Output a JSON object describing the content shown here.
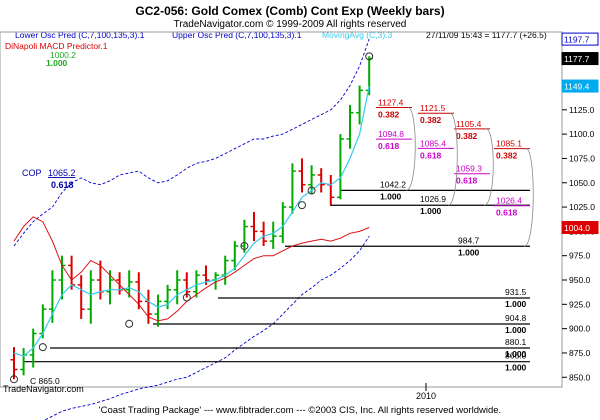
{
  "header": {
    "title": "GC2-056:  Gold Comex (Comb) Cont Exp  (Weekly bars)",
    "copyright": "TradeNavigator.com © 1999-2009 All rights reserved",
    "last_bar": "27/11/09 15:43 = 1177.7 (+26.5)"
  },
  "indicators": {
    "lower_osc": "Lower Osc Pred (C,7,100,135,3).1",
    "upper_osc": "Upper Osc Pred (C,7,100,135,3).1",
    "moving_avg": "MovingAvg (C,3).3",
    "macd": "DiNapoli MACD Predictor.1",
    "top_pred_value": "1000.2",
    "top_pred_ratio": "1.000"
  },
  "watermark": "TradeNavigator.com",
  "footer": "'Coast Trading Package' --- www.fibtrader.com --- ©2003 CIS, Inc. All rights reserved worldwide.",
  "colors": {
    "bar_up": "#00aa00",
    "bar_down": "#dd0000",
    "moving_avg": "#33ccee",
    "macd": "#dd1111",
    "osc_band": "#0000cc",
    "level_line": "#000000",
    "fib_red": "#cc0000",
    "fib_magenta": "#cc00cc",
    "price_last": "#000000",
    "price_upper": "#0000cc",
    "price_ma": "#00aaee",
    "price_macd": "#dd0000"
  },
  "chart_data": {
    "type": "bar",
    "title": "GC2-056:  Gold Comex (Comb) Cont Exp  (Weekly bars)",
    "ylim": [
      840,
      1205
    ],
    "x_tick_label": "2010",
    "y_ticks": [
      850,
      875,
      900,
      925,
      950,
      975,
      1000,
      1025,
      1050,
      1075,
      1100,
      1125,
      1150,
      1175
    ],
    "price_labels": [
      {
        "key": "upper",
        "text": "1197.7",
        "value": 1197.7
      },
      {
        "key": "last",
        "text": "1177.7",
        "value": 1177.7
      },
      {
        "key": "ma",
        "text": "1149.4",
        "value": 1149.4
      },
      {
        "key": "macd",
        "text": "1004.0",
        "value": 1004.0
      }
    ],
    "bars": [
      {
        "o": 868,
        "h": 881,
        "l": 848,
        "c": 858,
        "dir": "down"
      },
      {
        "o": 858,
        "h": 880,
        "l": 852,
        "c": 873,
        "dir": "up"
      },
      {
        "o": 873,
        "h": 900,
        "l": 860,
        "c": 895,
        "dir": "up"
      },
      {
        "o": 895,
        "h": 925,
        "l": 890,
        "c": 920,
        "dir": "up"
      },
      {
        "o": 920,
        "h": 960,
        "l": 906,
        "c": 950,
        "dir": "up"
      },
      {
        "o": 950,
        "h": 975,
        "l": 930,
        "c": 965,
        "dir": "up"
      },
      {
        "o": 965,
        "h": 975,
        "l": 940,
        "c": 945,
        "dir": "down"
      },
      {
        "o": 945,
        "h": 955,
        "l": 910,
        "c": 920,
        "dir": "down"
      },
      {
        "o": 920,
        "h": 960,
        "l": 905,
        "c": 950,
        "dir": "up"
      },
      {
        "o": 950,
        "h": 970,
        "l": 930,
        "c": 938,
        "dir": "down"
      },
      {
        "o": 938,
        "h": 960,
        "l": 925,
        "c": 950,
        "dir": "up"
      },
      {
        "o": 950,
        "h": 958,
        "l": 935,
        "c": 940,
        "dir": "down"
      },
      {
        "o": 940,
        "h": 960,
        "l": 932,
        "c": 948,
        "dir": "up"
      },
      {
        "o": 948,
        "h": 958,
        "l": 920,
        "c": 928,
        "dir": "down"
      },
      {
        "o": 928,
        "h": 940,
        "l": 905,
        "c": 915,
        "dir": "down"
      },
      {
        "o": 915,
        "h": 935,
        "l": 902,
        "c": 928,
        "dir": "up"
      },
      {
        "o": 928,
        "h": 945,
        "l": 920,
        "c": 940,
        "dir": "up"
      },
      {
        "o": 940,
        "h": 960,
        "l": 925,
        "c": 950,
        "dir": "up"
      },
      {
        "o": 950,
        "h": 958,
        "l": 932,
        "c": 938,
        "dir": "down"
      },
      {
        "o": 938,
        "h": 960,
        "l": 932,
        "c": 955,
        "dir": "up"
      },
      {
        "o": 955,
        "h": 965,
        "l": 945,
        "c": 950,
        "dir": "down"
      },
      {
        "o": 950,
        "h": 958,
        "l": 940,
        "c": 955,
        "dir": "up"
      },
      {
        "o": 955,
        "h": 975,
        "l": 945,
        "c": 970,
        "dir": "up"
      },
      {
        "o": 970,
        "h": 990,
        "l": 960,
        "c": 985,
        "dir": "up"
      },
      {
        "o": 985,
        "h": 1012,
        "l": 978,
        "c": 1005,
        "dir": "up"
      },
      {
        "o": 1005,
        "h": 1020,
        "l": 990,
        "c": 1000,
        "dir": "down"
      },
      {
        "o": 1000,
        "h": 1010,
        "l": 985,
        "c": 990,
        "dir": "down"
      },
      {
        "o": 990,
        "h": 1010,
        "l": 982,
        "c": 995,
        "dir": "up"
      },
      {
        "o": 995,
        "h": 1030,
        "l": 988,
        "c": 1025,
        "dir": "up"
      },
      {
        "o": 1025,
        "h": 1070,
        "l": 1018,
        "c": 1062,
        "dir": "up"
      },
      {
        "o": 1062,
        "h": 1075,
        "l": 1040,
        "c": 1048,
        "dir": "down"
      },
      {
        "o": 1048,
        "h": 1068,
        "l": 1038,
        "c": 1058,
        "dir": "up"
      },
      {
        "o": 1058,
        "h": 1065,
        "l": 1040,
        "c": 1048,
        "dir": "down"
      },
      {
        "o": 1048,
        "h": 1058,
        "l": 1027,
        "c": 1035,
        "dir": "down"
      },
      {
        "o": 1035,
        "h": 1100,
        "l": 1033,
        "c": 1095,
        "dir": "up"
      },
      {
        "o": 1095,
        "h": 1130,
        "l": 1085,
        "c": 1122,
        "dir": "up"
      },
      {
        "o": 1122,
        "h": 1150,
        "l": 1110,
        "c": 1145,
        "dir": "up"
      },
      {
        "o": 1145,
        "h": 1180,
        "l": 1140,
        "c": 1177.7,
        "dir": "up"
      }
    ],
    "moving_avg": [
      875,
      872,
      880,
      895,
      915,
      935,
      945,
      940,
      935,
      938,
      940,
      940,
      942,
      938,
      928,
      922,
      925,
      935,
      940,
      945,
      948,
      950,
      955,
      962,
      975,
      988,
      995,
      998,
      1005,
      1020,
      1035,
      1042,
      1050,
      1048,
      1055,
      1075,
      1100,
      1149.4
    ],
    "macd_line": [
      990,
      1005,
      1015,
      1010,
      990,
      965,
      950,
      958,
      970,
      965,
      955,
      945,
      935,
      925,
      912,
      908,
      910,
      918,
      928,
      935,
      942,
      948,
      952,
      958,
      965,
      972,
      975,
      975,
      980,
      985,
      988,
      990,
      992,
      990,
      993,
      998,
      1000,
      1004
    ],
    "upper_band": [
      985,
      998,
      1010,
      1018,
      1025,
      1040,
      1050,
      1055,
      1050,
      1048,
      1052,
      1058,
      1060,
      1062,
      1055,
      1050,
      1052,
      1058,
      1065,
      1070,
      1072,
      1075,
      1080,
      1085,
      1090,
      1095,
      1095,
      1098,
      1100,
      1105,
      1110,
      1115,
      1120,
      1125,
      1135,
      1150,
      1170,
      1197.7
    ],
    "lower_band": [
      790,
      795,
      800,
      805,
      810,
      815,
      818,
      820,
      822,
      825,
      828,
      832,
      835,
      838,
      840,
      842,
      845,
      848,
      850,
      855,
      860,
      865,
      870,
      878,
      885,
      892,
      898,
      905,
      915,
      925,
      935,
      942,
      950,
      955,
      962,
      970,
      980,
      995
    ],
    "pivots": [
      {
        "bar": 0,
        "price": 848
      },
      {
        "bar": 3,
        "price": 881
      },
      {
        "bar": 12,
        "price": 905
      },
      {
        "bar": 18,
        "price": 932
      },
      {
        "bar": 24,
        "price": 985
      },
      {
        "bar": 30,
        "price": 1027
      },
      {
        "bar": 31,
        "price": 1042
      },
      {
        "bar": 37,
        "price": 1180
      }
    ],
    "levels": [
      {
        "value": 1042.2,
        "label": "1042.2",
        "ratio": "1.000"
      },
      {
        "value": 1026.9,
        "label": "1026.9",
        "ratio": "1.000"
      },
      {
        "value": 984.7,
        "label": "984.7",
        "ratio": "1.000"
      },
      {
        "value": 931.5,
        "label": "931.5",
        "ratio": "1.000"
      },
      {
        "value": 904.8,
        "label": "904.8",
        "ratio": "1.000"
      },
      {
        "value": 880.1,
        "label": "880.1",
        "ratio": "1.000"
      },
      {
        "value": 866.0,
        "label": "866.0",
        "ratio": "1.000"
      }
    ],
    "fib_red": [
      {
        "value": 1127.4,
        "label": "1127.4",
        "ratio": "0.382"
      },
      {
        "value": 1121.5,
        "label": "1121.5",
        "ratio": "0.382"
      },
      {
        "value": 1105.4,
        "label": "1105.4",
        "ratio": "0.382"
      },
      {
        "value": 1085.1,
        "label": "1085.1",
        "ratio": "0.382"
      }
    ],
    "fib_magenta": [
      {
        "value": 1094.8,
        "label": "1094.8",
        "ratio": "0.618"
      },
      {
        "value": 1085.4,
        "label": "1085.4",
        "ratio": "0.618"
      },
      {
        "value": 1059.3,
        "label": "1059.3",
        "ratio": "0.618"
      },
      {
        "value": 1026.4,
        "label": "1026.4",
        "ratio": "0.618"
      }
    ],
    "cop": {
      "label": "COP",
      "value": 1065.2,
      "text": "1065.2",
      "ratio": "0.618"
    },
    "low_label": "C 865.0"
  }
}
